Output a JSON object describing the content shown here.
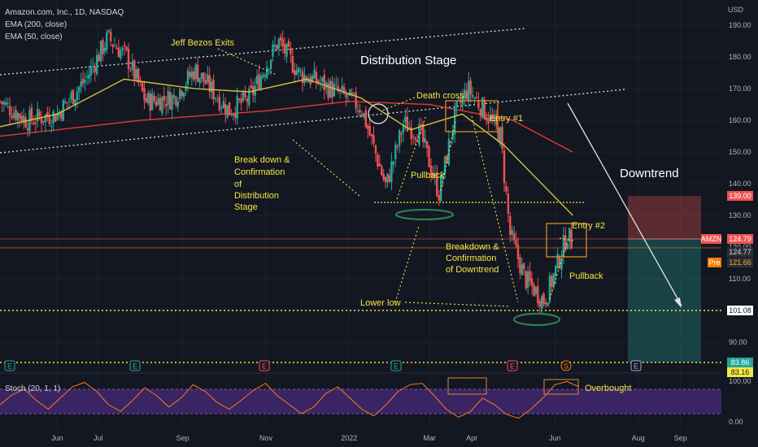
{
  "header": {
    "title": "Amazon.com, Inc., 1D, NASDAQ",
    "indicator1": "EMA (200, close)",
    "indicator2": "EMA (50, close)",
    "currency": "USD"
  },
  "stoch": {
    "label": "Stoch (20, 1, 1)",
    "ticks": [
      "100.00",
      "0.00"
    ]
  },
  "colors": {
    "background": "#131722",
    "bullish": "#26a69a",
    "bearish": "#ef5350",
    "ema200": "#e53935",
    "ema50": "#d4c13b",
    "annotation": "#f5e642",
    "box": "#d98b2b",
    "stoch_line": "#f57c1f",
    "stoch_band": "#4a2a7a",
    "ellipse": "#2e7d4f"
  },
  "annotations": {
    "bezos": "Jeff Bezos Exits",
    "distribution": "Distribution Stage",
    "death_cross": "Death cross",
    "entry1": "Entry #1",
    "breakdown1": [
      "Break down &",
      "Confirmation",
      "of",
      "Distribution",
      "Stage"
    ],
    "pullback1": "Pullback",
    "downtrend": "Downtrend",
    "entry2": "Entry #2",
    "breakdown2": [
      "Breakdown &",
      "Confirmation",
      "of Downtrend"
    ],
    "pullback2": "Pullback",
    "lower_low": "Lower low",
    "overbought": "Overbought"
  },
  "event_markers": [
    "E",
    "E",
    "E",
    "E",
    "E",
    "E",
    "S",
    "E"
  ],
  "price_tags": [
    {
      "text": "139.00",
      "bg": "#ef5350",
      "fg": "#ffffff"
    },
    {
      "text": "AMZN",
      "bg": "#ef5350",
      "fg": "#ffffff"
    },
    {
      "text": "124.79",
      "bg": "#ef5350",
      "fg": "#ffffff"
    },
    {
      "text": "124.77",
      "bg": "#2a2e39",
      "fg": "#d1d4dc"
    },
    {
      "text": "Pre",
      "bg": "#f57c00",
      "fg": "#ffffff"
    },
    {
      "text": "121.66",
      "bg": "#2a2e39",
      "fg": "#f5a623"
    },
    {
      "text": "101.08",
      "bg": "#ffffff",
      "fg": "#131722"
    },
    {
      "text": "83.86",
      "bg": "#26a69a",
      "fg": "#ffffff"
    },
    {
      "text": "83.16",
      "bg": "#f5e642",
      "fg": "#131722"
    }
  ],
  "chart_data": {
    "type": "candlestick",
    "title": "Amazon.com, Inc., 1D, NASDAQ",
    "y_axis": {
      "ticks": [
        90,
        100,
        110,
        120,
        130,
        140,
        150,
        160,
        170,
        180,
        190
      ],
      "tick_labels": [
        "90.00",
        "100.00",
        "110.00",
        "120.00",
        "130.00",
        "140.00",
        "150.00",
        "160.00",
        "170.00",
        "180.00",
        "190.00"
      ],
      "range": [
        81,
        198
      ]
    },
    "x_axis": {
      "labels": [
        "Jun",
        "Jul",
        "Sep",
        "Nov",
        "2022",
        "Mar",
        "Apr",
        "Jun",
        "Aug",
        "Sep"
      ],
      "range": [
        "2021-04-20",
        "2022-10-01"
      ]
    },
    "price_path": [
      [
        "2021-04-20",
        166
      ],
      [
        "2021-05-10",
        160
      ],
      [
        "2021-06-01",
        162
      ],
      [
        "2021-06-22",
        173
      ],
      [
        "2021-07-08",
        186
      ],
      [
        "2021-07-22",
        180
      ],
      [
        "2021-08-05",
        166
      ],
      [
        "2021-08-25",
        167
      ],
      [
        "2021-09-10",
        176
      ],
      [
        "2021-10-05",
        163
      ],
      [
        "2021-10-20",
        167
      ],
      [
        "2021-11-10",
        185
      ],
      [
        "2021-11-25",
        175
      ],
      [
        "2021-12-10",
        172
      ],
      [
        "2021-12-27",
        168
      ],
      [
        "2022-01-10",
        164
      ],
      [
        "2022-01-28",
        139
      ],
      [
        "2022-02-10",
        159
      ],
      [
        "2022-02-22",
        156
      ],
      [
        "2022-03-08",
        137
      ],
      [
        "2022-03-20",
        162
      ],
      [
        "2022-03-29",
        170
      ],
      [
        "2022-04-12",
        162
      ],
      [
        "2022-04-22",
        155
      ],
      [
        "2022-04-29",
        124
      ],
      [
        "2022-05-10",
        110
      ],
      [
        "2022-05-24",
        103
      ],
      [
        "2022-06-01",
        112
      ],
      [
        "2022-06-10",
        124
      ],
      [
        "2022-06-14",
        121
      ]
    ],
    "series": [
      {
        "name": "EMA (200, close)",
        "points": [
          [
            "2021-04-20",
            155
          ],
          [
            "2021-08-01",
            160
          ],
          [
            "2021-11-01",
            163
          ],
          [
            "2022-01-01",
            166
          ],
          [
            "2022-03-01",
            165
          ],
          [
            "2022-05-01",
            160
          ],
          [
            "2022-06-14",
            150
          ]
        ]
      },
      {
        "name": "EMA (50, close)",
        "points": [
          [
            "2021-04-20",
            158
          ],
          [
            "2021-06-01",
            162
          ],
          [
            "2021-07-20",
            173
          ],
          [
            "2021-09-10",
            170
          ],
          [
            "2021-10-20",
            169
          ],
          [
            "2021-12-01",
            173
          ],
          [
            "2022-01-10",
            167
          ],
          [
            "2022-02-15",
            157
          ],
          [
            "2022-03-25",
            162
          ],
          [
            "2022-04-25",
            152
          ],
          [
            "2022-06-14",
            130
          ]
        ]
      }
    ],
    "reference_levels": [
      101.08,
      83.86,
      83.16
    ],
    "support_level": 137,
    "position_box": {
      "start": "2022-07-15",
      "end": "2022-08-31",
      "stop": 139.0,
      "entry": 124.77,
      "target": 83.86
    },
    "stochastic": {
      "name": "Stoch (20, 1, 1)",
      "ylim": [
        0,
        100
      ],
      "band": [
        20,
        80
      ],
      "values": [
        40,
        62,
        75,
        50,
        30,
        55,
        80,
        90,
        70,
        40,
        25,
        50,
        78,
        60,
        35,
        55,
        85,
        70,
        45,
        30,
        50,
        72,
        88,
        60,
        40,
        20,
        35,
        65,
        80,
        55,
        30,
        15,
        40,
        70,
        85,
        88,
        60,
        30,
        12,
        25,
        55,
        40,
        18,
        10,
        30,
        55,
        85,
        92,
        80
      ]
    }
  }
}
